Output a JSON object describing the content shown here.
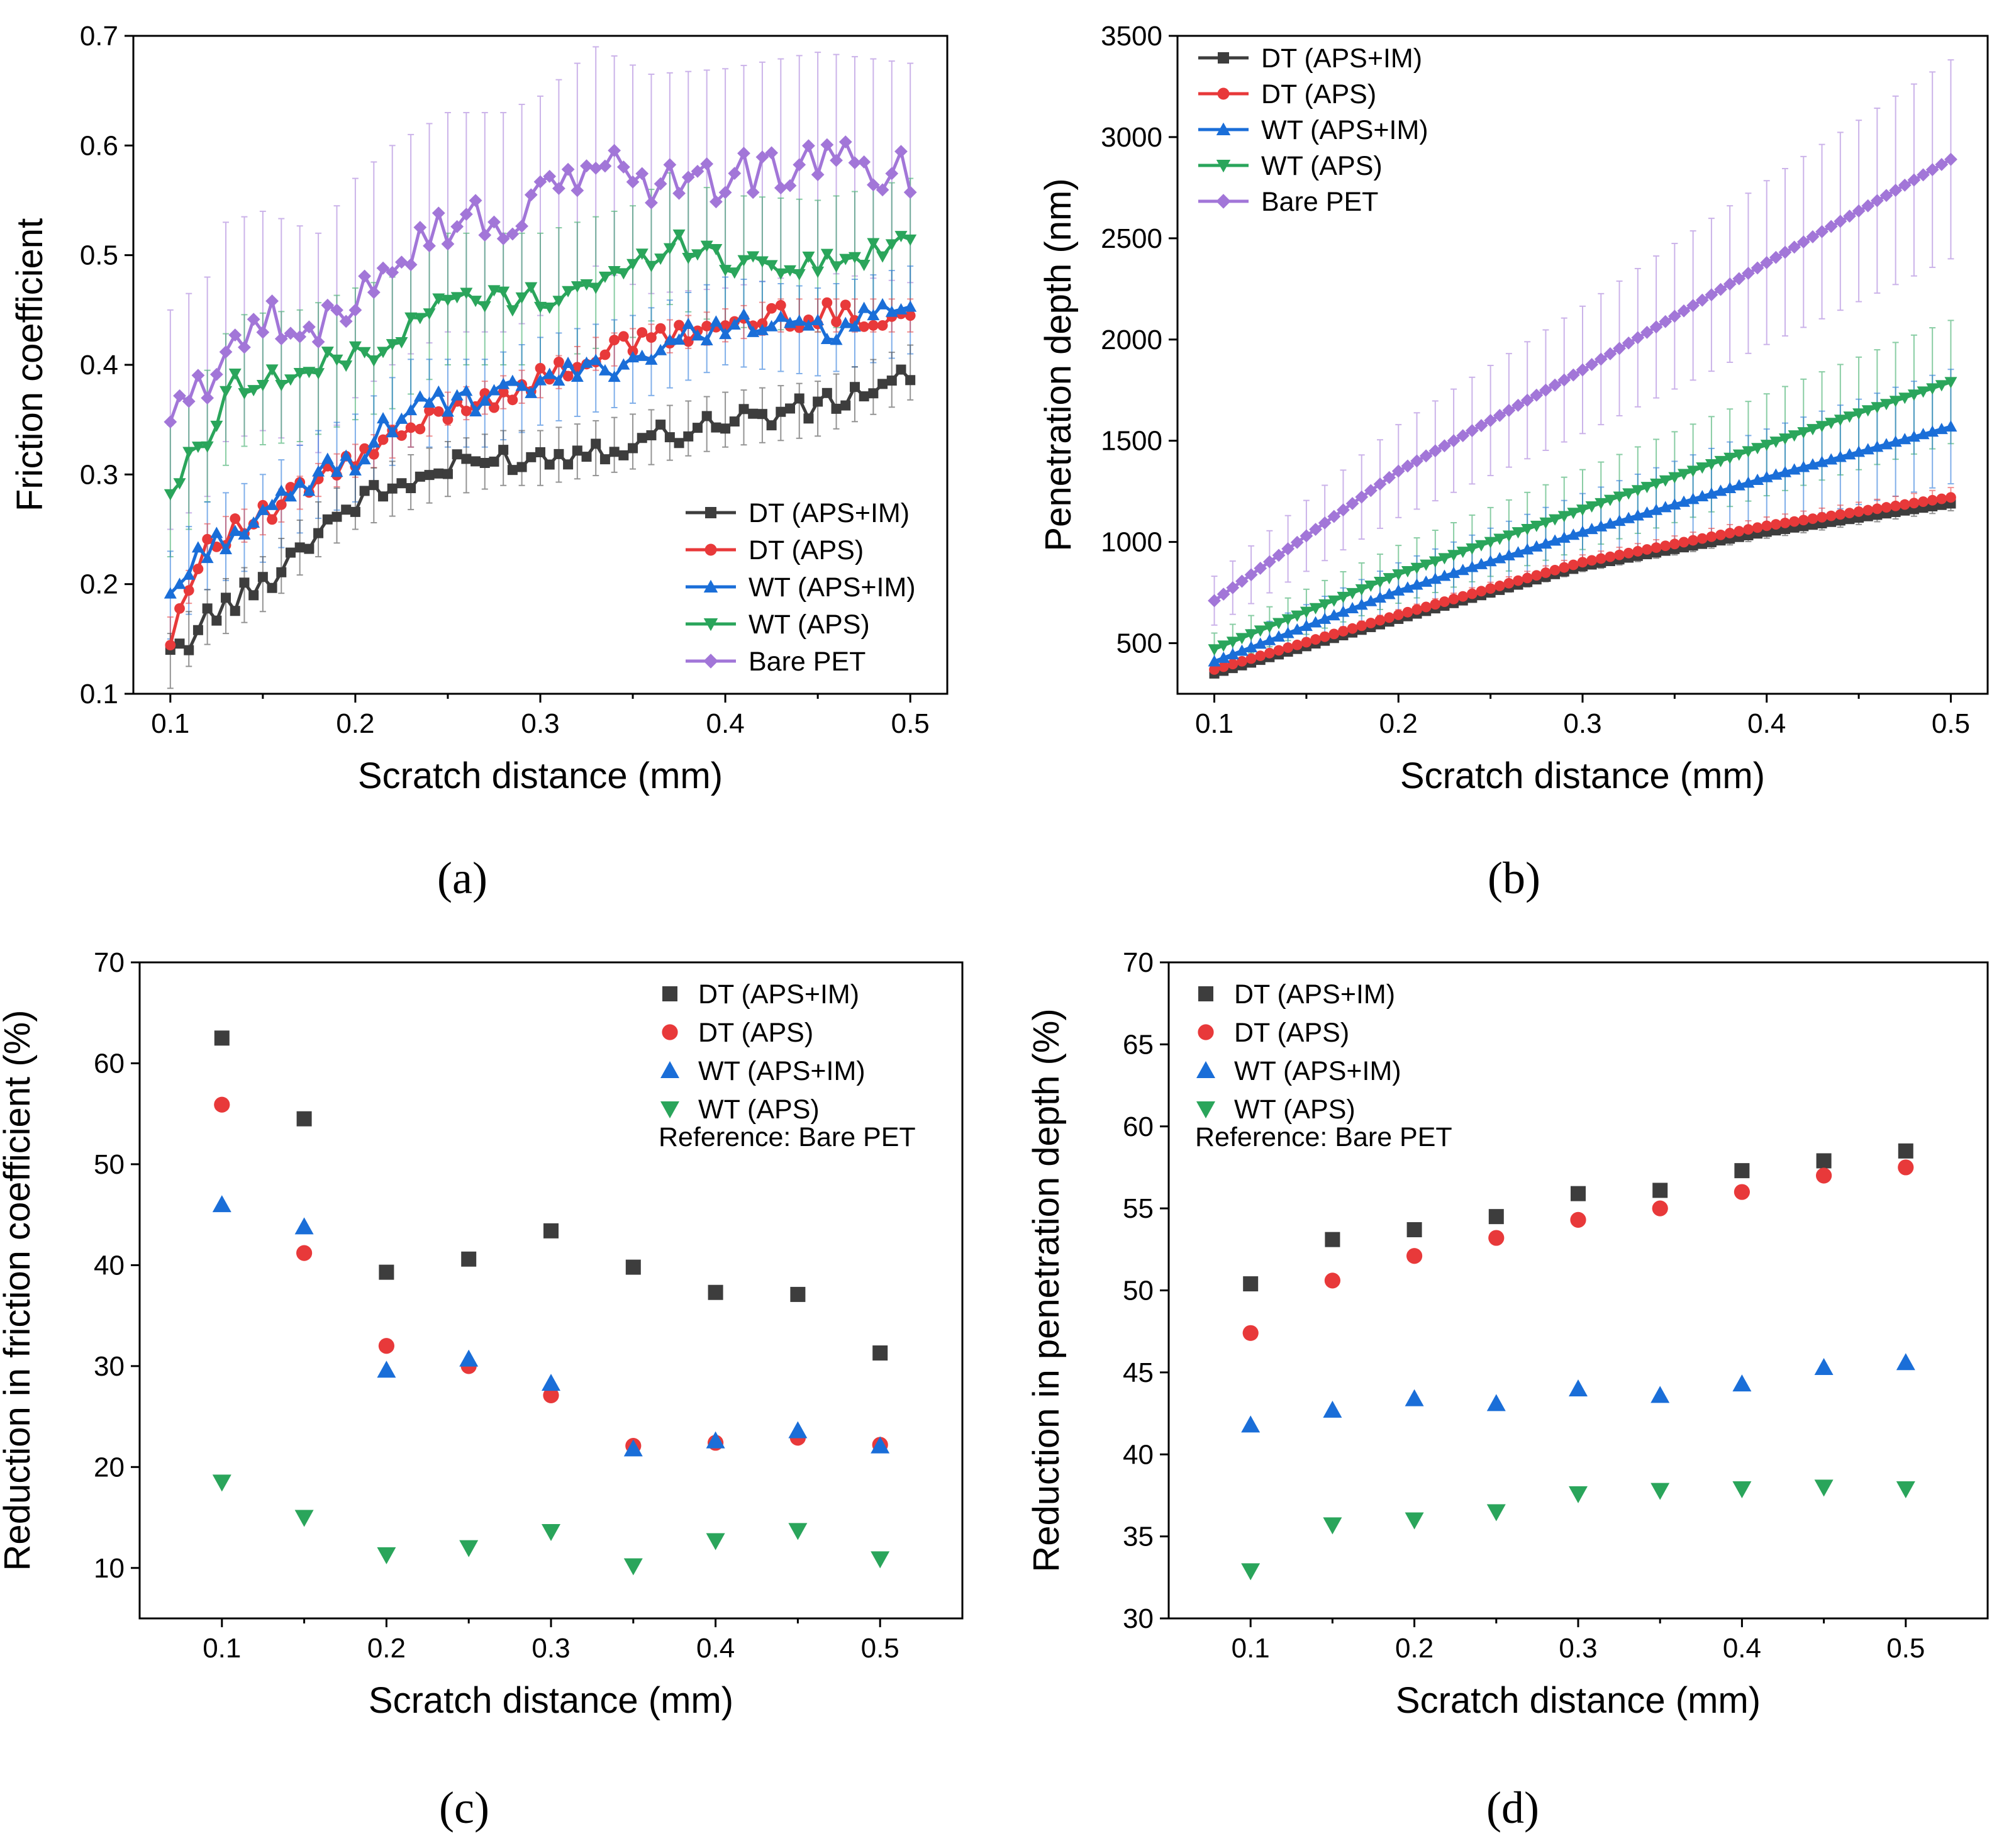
{
  "figure": {
    "panel_labels": {
      "a": "(a)",
      "b": "(b)",
      "c": "(c)",
      "d": "(d)"
    }
  },
  "series_style": [
    {
      "name": "DT (APS+IM)",
      "color": "#3d3d3d",
      "marker": "square"
    },
    {
      "name": "DT (APS)",
      "color": "#e8393a",
      "marker": "circle"
    },
    {
      "name": "WT (APS+IM)",
      "color": "#1a6ed8",
      "marker": "triangle-up"
    },
    {
      "name": "WT (APS)",
      "color": "#2aa55b",
      "marker": "triangle-down"
    },
    {
      "name": "Bare PET",
      "color": "#a276d8",
      "marker": "diamond"
    }
  ],
  "chart_data": [
    {
      "id": "a",
      "type": "line",
      "title": "",
      "xlabel": "Scratch distance (mm)",
      "ylabel": "Friction coefficient",
      "xlim": [
        0.08,
        0.52
      ],
      "ylim": [
        0.1,
        0.7
      ],
      "xticks": [
        0.1,
        0.2,
        0.3,
        0.4,
        0.5
      ],
      "xtick_labels": [
        "0.1",
        "0.2",
        "0.3",
        "0.4",
        "0.5"
      ],
      "yticks": [
        0.1,
        0.2,
        0.3,
        0.4,
        0.5,
        0.6,
        0.7
      ],
      "ytick_labels": [
        "0.1",
        "0.2",
        "0.3",
        "0.4",
        "0.5",
        "0.6",
        "0.7"
      ],
      "legend_position": "bottom-right",
      "x_range": [
        0.1,
        0.5
      ],
      "n_points": 81,
      "series": [
        {
          "name": "DT (APS+IM)",
          "anchors": [
            [
              0.1,
              0.13
            ],
            [
              0.12,
              0.17
            ],
            [
              0.15,
              0.2
            ],
            [
              0.18,
              0.25
            ],
            [
              0.2,
              0.275
            ],
            [
              0.25,
              0.305
            ],
            [
              0.28,
              0.315
            ],
            [
              0.3,
              0.315
            ],
            [
              0.35,
              0.33
            ],
            [
              0.4,
              0.35
            ],
            [
              0.45,
              0.36
            ],
            [
              0.5,
              0.393
            ]
          ],
          "error": 0.025
        },
        {
          "name": "DT (APS)",
          "anchors": [
            [
              0.1,
              0.155
            ],
            [
              0.12,
              0.24
            ],
            [
              0.15,
              0.26
            ],
            [
              0.18,
              0.295
            ],
            [
              0.22,
              0.33
            ],
            [
              0.25,
              0.36
            ],
            [
              0.3,
              0.385
            ],
            [
              0.33,
              0.41
            ],
            [
              0.38,
              0.43
            ],
            [
              0.43,
              0.445
            ],
            [
              0.5,
              0.445
            ]
          ],
          "error": 0.015
        },
        {
          "name": "WT (APS+IM)",
          "anchors": [
            [
              0.1,
              0.19
            ],
            [
              0.12,
              0.235
            ],
            [
              0.15,
              0.26
            ],
            [
              0.18,
              0.3
            ],
            [
              0.2,
              0.315
            ],
            [
              0.23,
              0.365
            ],
            [
              0.27,
              0.365
            ],
            [
              0.3,
              0.385
            ],
            [
              0.35,
              0.405
            ],
            [
              0.4,
              0.44
            ],
            [
              0.45,
              0.43
            ],
            [
              0.5,
              0.45
            ]
          ],
          "error": 0.04
        },
        {
          "name": "WT (APS)",
          "anchors": [
            [
              0.1,
              0.285
            ],
            [
              0.12,
              0.335
            ],
            [
              0.135,
              0.385
            ],
            [
              0.17,
              0.39
            ],
            [
              0.2,
              0.41
            ],
            [
              0.22,
              0.42
            ],
            [
              0.25,
              0.46
            ],
            [
              0.3,
              0.46
            ],
            [
              0.35,
              0.485
            ],
            [
              0.37,
              0.515
            ],
            [
              0.4,
              0.495
            ],
            [
              0.45,
              0.49
            ],
            [
              0.5,
              0.51
            ]
          ],
          "error": 0.06
        },
        {
          "name": "Bare PET",
          "anchors": [
            [
              0.1,
              0.35
            ],
            [
              0.12,
              0.38
            ],
            [
              0.13,
              0.43
            ],
            [
              0.15,
              0.44
            ],
            [
              0.18,
              0.42
            ],
            [
              0.2,
              0.47
            ],
            [
              0.22,
              0.5
            ],
            [
              0.25,
              0.53
            ],
            [
              0.28,
              0.53
            ],
            [
              0.3,
              0.545
            ],
            [
              0.33,
              0.59
            ],
            [
              0.36,
              0.565
            ],
            [
              0.4,
              0.57
            ],
            [
              0.45,
              0.585
            ],
            [
              0.5,
              0.575
            ]
          ],
          "error": 0.1
        }
      ]
    },
    {
      "id": "b",
      "type": "line",
      "title": "",
      "xlabel": "Scratch distance (mm)",
      "ylabel": "Penetration depth (nm)",
      "xlim": [
        0.08,
        0.52
      ],
      "ylim": [
        250,
        3500
      ],
      "xticks": [
        0.1,
        0.2,
        0.3,
        0.4,
        0.5
      ],
      "xtick_labels": [
        "0.1",
        "0.2",
        "0.3",
        "0.4",
        "0.5"
      ],
      "yticks": [
        500,
        1000,
        1500,
        2000,
        2500,
        3000,
        3500
      ],
      "ytick_labels": [
        "500",
        "1000",
        "1500",
        "2000",
        "2500",
        "3000",
        "3500"
      ],
      "legend_position": "top-left",
      "x_range": [
        0.1,
        0.5
      ],
      "n_points": 81,
      "series": [
        {
          "name": "DT (APS+IM)",
          "anchors": [
            [
              0.1,
              350
            ],
            [
              0.2,
              620
            ],
            [
              0.3,
              880
            ],
            [
              0.4,
              1050
            ],
            [
              0.5,
              1190
            ]
          ],
          "error_frac": 0.03
        },
        {
          "name": "DT (APS)",
          "anchors": [
            [
              0.1,
              370
            ],
            [
              0.2,
              640
            ],
            [
              0.3,
              900
            ],
            [
              0.4,
              1080
            ],
            [
              0.5,
              1220
            ]
          ],
          "error_frac": 0.04
        },
        {
          "name": "WT (APS+IM)",
          "anchors": [
            [
              0.1,
              410
            ],
            [
              0.2,
              760
            ],
            [
              0.3,
              1050
            ],
            [
              0.4,
              1320
            ],
            [
              0.5,
              1570
            ]
          ],
          "error_frac": 0.18
        },
        {
          "name": "WT (APS)",
          "anchors": [
            [
              0.1,
              470
            ],
            [
              0.2,
              840
            ],
            [
              0.3,
              1160
            ],
            [
              0.4,
              1480
            ],
            [
              0.5,
              1790
            ]
          ],
          "error_frac": 0.17
        },
        {
          "name": "Bare PET",
          "anchors": [
            [
              0.1,
              710
            ],
            [
              0.2,
              1350
            ],
            [
              0.3,
              1850
            ],
            [
              0.4,
              2380
            ],
            [
              0.5,
              2890
            ]
          ],
          "error_frac": 0.17
        }
      ]
    },
    {
      "id": "c",
      "type": "scatter",
      "title": "",
      "xlabel": "Scratch distance (mm)",
      "ylabel": "Reduction in friction coefficient (%)",
      "xlim": [
        0.05,
        0.55
      ],
      "ylim": [
        5,
        70
      ],
      "xticks": [
        0.1,
        0.2,
        0.3,
        0.4,
        0.5
      ],
      "xtick_labels": [
        "0.1",
        "0.2",
        "0.3",
        "0.4",
        "0.5"
      ],
      "yticks": [
        10,
        20,
        30,
        40,
        50,
        60,
        70
      ],
      "ytick_labels": [
        "10",
        "20",
        "30",
        "40",
        "50",
        "60",
        "70"
      ],
      "legend_position": "top-right",
      "note": "Reference: Bare PET",
      "x": [
        0.1,
        0.15,
        0.2,
        0.25,
        0.3,
        0.35,
        0.4,
        0.45,
        0.5
      ],
      "series": [
        {
          "name": "DT (APS+IM)",
          "values": [
            62.5,
            54.5,
            39.3,
            40.6,
            43.4,
            39.8,
            37.3,
            37.1,
            31.3
          ]
        },
        {
          "name": "DT (APS)",
          "values": [
            55.9,
            41.2,
            32.0,
            30.0,
            27.1,
            22.1,
            22.4,
            22.9,
            22.2
          ]
        },
        {
          "name": "WT (APS+IM)",
          "values": [
            46.0,
            43.8,
            29.6,
            30.7,
            28.3,
            21.8,
            22.6,
            23.6,
            22.1
          ]
        },
        {
          "name": "WT (APS)",
          "values": [
            18.5,
            15.0,
            11.3,
            12.0,
            13.6,
            10.2,
            12.7,
            13.7,
            10.9
          ]
        }
      ]
    },
    {
      "id": "d",
      "type": "scatter",
      "title": "",
      "xlabel": "Scratch distance (mm)",
      "ylabel": "Reduction in penetration depth (%)",
      "xlim": [
        0.05,
        0.55
      ],
      "ylim": [
        30,
        70
      ],
      "xticks": [
        0.1,
        0.2,
        0.3,
        0.4,
        0.5
      ],
      "xtick_labels": [
        "0.1",
        "0.2",
        "0.3",
        "0.4",
        "0.5"
      ],
      "yticks": [
        30,
        35,
        40,
        45,
        50,
        55,
        60,
        65,
        70
      ],
      "ytick_labels": [
        "30",
        "35",
        "40",
        "45",
        "50",
        "55",
        "60",
        "65",
        "70"
      ],
      "legend_position": "top-left",
      "note": "Reference: Bare PET",
      "x": [
        0.1,
        0.15,
        0.2,
        0.25,
        0.3,
        0.35,
        0.4,
        0.45,
        0.5
      ],
      "series": [
        {
          "name": "DT (APS+IM)",
          "values": [
            50.4,
            53.1,
            53.7,
            54.5,
            55.9,
            56.1,
            57.3,
            57.9,
            58.5
          ]
        },
        {
          "name": "DT (APS)",
          "values": [
            47.4,
            50.6,
            52.1,
            53.2,
            54.3,
            55.0,
            56.0,
            57.0,
            57.5
          ]
        },
        {
          "name": "WT (APS+IM)",
          "values": [
            41.8,
            42.7,
            43.4,
            43.1,
            44.0,
            43.6,
            44.3,
            45.3,
            45.6
          ]
        },
        {
          "name": "WT (APS)",
          "values": [
            32.9,
            35.7,
            36.0,
            36.5,
            37.6,
            37.8,
            37.9,
            38.0,
            37.9
          ]
        }
      ]
    }
  ]
}
